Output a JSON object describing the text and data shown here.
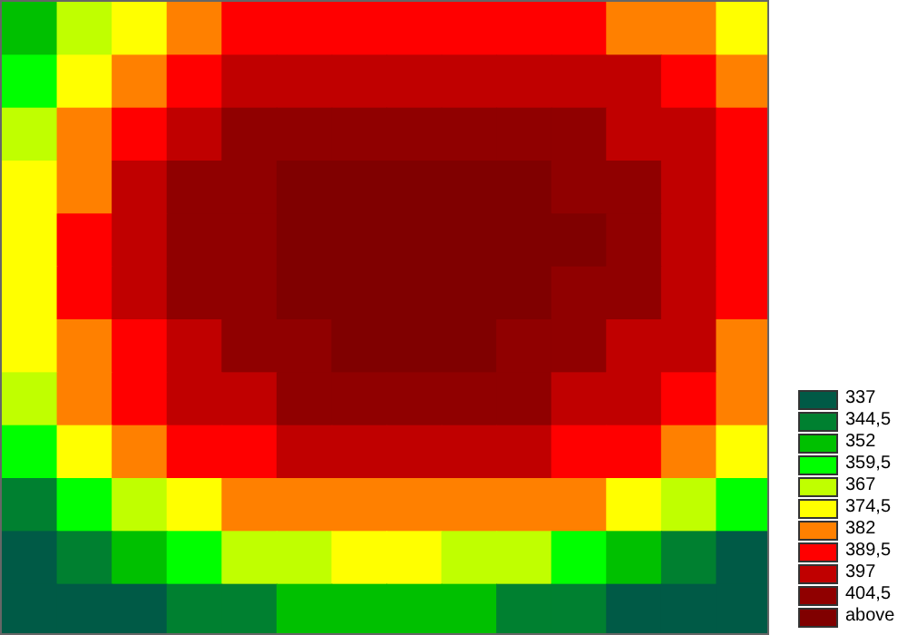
{
  "chart_data": {
    "type": "heatmap",
    "categories": [
      null,
      null,
      null,
      null,
      null,
      null,
      null,
      null,
      null,
      null,
      null,
      null,
      null,
      null
    ],
    "y_categories": [
      null,
      null,
      null,
      null,
      null,
      null,
      null,
      null,
      null,
      null,
      null,
      null
    ],
    "cells": [
      [
        352,
        367,
        374.5,
        382,
        389.5,
        389.5,
        389.5,
        389.5,
        389.5,
        389.5,
        389.5,
        382,
        382,
        374.5
      ],
      [
        359.5,
        374.5,
        382,
        389.5,
        397,
        397,
        397,
        397,
        397,
        397,
        397,
        397,
        389.5,
        382
      ],
      [
        367,
        382,
        389.5,
        397,
        404.5,
        404.5,
        404.5,
        404.5,
        404.5,
        404.5,
        404.5,
        397,
        397,
        389.5
      ],
      [
        374.5,
        382,
        397,
        404.5,
        404.5,
        412,
        412,
        412,
        412,
        412,
        404.5,
        404.5,
        397,
        389.5
      ],
      [
        374.5,
        389.5,
        397,
        404.5,
        404.5,
        412,
        412,
        412,
        412,
        412,
        412,
        404.5,
        397,
        389.5
      ],
      [
        374.5,
        389.5,
        397,
        404.5,
        404.5,
        412,
        412,
        412,
        412,
        412,
        404.5,
        404.5,
        397,
        389.5
      ],
      [
        374.5,
        382,
        389.5,
        397,
        404.5,
        404.5,
        412,
        412,
        412,
        404.5,
        404.5,
        397,
        397,
        382
      ],
      [
        367,
        382,
        389.5,
        397,
        397,
        404.5,
        404.5,
        404.5,
        404.5,
        404.5,
        397,
        397,
        389.5,
        382
      ],
      [
        359.5,
        374.5,
        382,
        389.5,
        389.5,
        397,
        397,
        397,
        397,
        397,
        389.5,
        389.5,
        382,
        374.5
      ],
      [
        344.5,
        359.5,
        367,
        374.5,
        382,
        382,
        382,
        382,
        382,
        382,
        382,
        374.5,
        367,
        359.5
      ],
      [
        337,
        344.5,
        352,
        359.5,
        367,
        367,
        374.5,
        374.5,
        367,
        367,
        359.5,
        352,
        344.5,
        337
      ],
      [
        337,
        337,
        337,
        344.5,
        344.5,
        352,
        352,
        352,
        352,
        344.5,
        344.5,
        337,
        337,
        337
      ]
    ],
    "cticks": [
      337,
      {
        "value": 344.5,
        "label": "344,5"
      },
      352,
      {
        "value": 359.5,
        "label": "359,5"
      },
      367,
      {
        "value": 374.5,
        "label": "374,5"
      },
      382,
      {
        "value": 389.5,
        "label": "389,5"
      },
      397,
      {
        "value": 404.5,
        "label": "404,5"
      },
      {
        "value": 412,
        "label": "above"
      }
    ],
    "colors": [
      "#005a46",
      "#008030",
      "#00c000",
      "#00ff00",
      "#c0ff00",
      "#ffff00",
      "#ff8000",
      "#ff0000",
      "#c00000",
      "#900000",
      "#800000"
    ]
  }
}
